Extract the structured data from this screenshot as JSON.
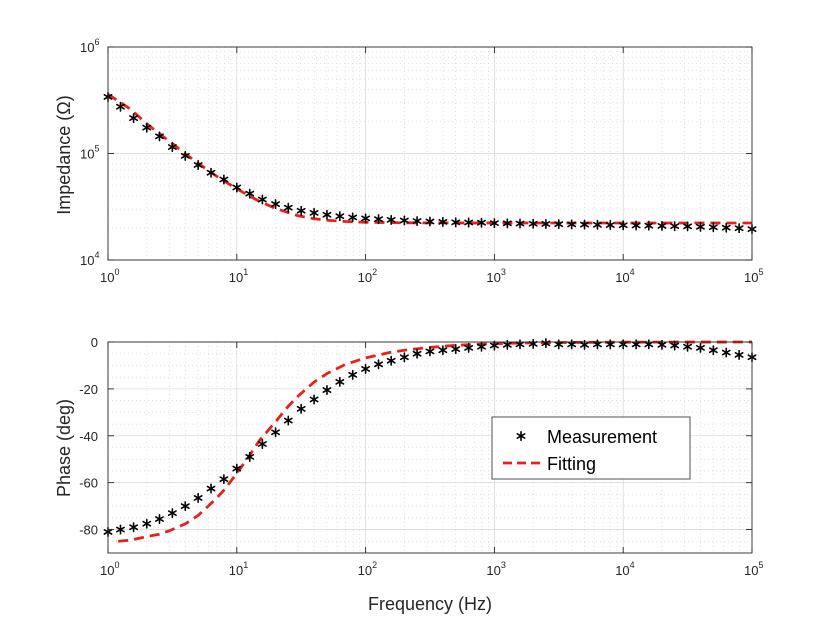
{
  "chart_data": [
    {
      "type": "scatter",
      "panel": "impedance",
      "x_scale": "log",
      "y_scale": "log",
      "xlim": [
        1,
        100000
      ],
      "ylim": [
        10000,
        1000000
      ],
      "grid": true,
      "minor_grid": true,
      "xlabel": "",
      "ylabel": "Impedance (Ω)",
      "x_ticks": [
        {
          "base": "10",
          "exp": "0",
          "value": 1
        },
        {
          "base": "10",
          "exp": "1",
          "value": 10
        },
        {
          "base": "10",
          "exp": "2",
          "value": 100
        },
        {
          "base": "10",
          "exp": "3",
          "value": 1000
        },
        {
          "base": "10",
          "exp": "4",
          "value": 10000
        },
        {
          "base": "10",
          "exp": "5",
          "value": 100000
        }
      ],
      "y_ticks": [
        {
          "base": "10",
          "exp": "4",
          "value": 10000
        },
        {
          "base": "10",
          "exp": "5",
          "value": 100000
        },
        {
          "base": "10",
          "exp": "6",
          "value": 1000000
        }
      ],
      "series": [
        {
          "key": "measurement",
          "style": "markers",
          "marker": "asterisk",
          "color": "#000000",
          "x": [
            1,
            1.25,
            1.58,
            2,
            2.51,
            3.16,
            3.98,
            5.01,
            6.31,
            7.94,
            10,
            12.6,
            15.8,
            20,
            25.1,
            31.6,
            39.8,
            50.1,
            63.1,
            79.4,
            100,
            126,
            158,
            200,
            251,
            316,
            398,
            501,
            631,
            794,
            1000,
            1260,
            1580,
            2000,
            2510,
            3160,
            3980,
            5010,
            6310,
            7940,
            10000,
            12600,
            15800,
            20000,
            25100,
            31600,
            39800,
            50100,
            63100,
            79400,
            100000
          ],
          "y": [
            340000,
            275000,
            215000,
            175000,
            145000,
            115000,
            95000,
            78000,
            66000,
            57000,
            48000,
            42000,
            37000,
            33500,
            31000,
            29000,
            27700,
            26600,
            25800,
            25100,
            24600,
            24200,
            23800,
            23500,
            23200,
            23000,
            22800,
            22600,
            22500,
            22400,
            22200,
            22100,
            22000,
            21900,
            21800,
            21700,
            21600,
            21500,
            21400,
            21300,
            21200,
            21100,
            21000,
            20900,
            20800,
            20700,
            20500,
            20300,
            20100,
            19900,
            19500
          ]
        },
        {
          "key": "fitting",
          "style": "dashed-line",
          "color": "#e8201c",
          "x": [
            1,
            1.5,
            2,
            3,
            4,
            5,
            7,
            10,
            15,
            20,
            30,
            40,
            50,
            70,
            100,
            200,
            500,
            1000,
            10000,
            100000
          ],
          "y": [
            360000,
            260000,
            190000,
            130000,
            99000,
            81000,
            61000,
            46500,
            35500,
            30500,
            26000,
            24400,
            23600,
            23000,
            22600,
            22350,
            22300,
            22280,
            22250,
            22250
          ]
        }
      ]
    },
    {
      "type": "scatter",
      "panel": "phase",
      "x_scale": "log",
      "y_scale": "linear",
      "xlim": [
        1,
        100000
      ],
      "ylim": [
        -90,
        0
      ],
      "grid": true,
      "minor_grid": true,
      "xlabel": "Frequency (Hz)",
      "ylabel": "Phase (deg)",
      "x_ticks": [
        {
          "base": "10",
          "exp": "0",
          "value": 1
        },
        {
          "base": "10",
          "exp": "1",
          "value": 10
        },
        {
          "base": "10",
          "exp": "2",
          "value": 100
        },
        {
          "base": "10",
          "exp": "3",
          "value": 1000
        },
        {
          "base": "10",
          "exp": "4",
          "value": 10000
        },
        {
          "base": "10",
          "exp": "5",
          "value": 100000
        }
      ],
      "y_ticks": [
        {
          "label": "0",
          "value": 0
        },
        {
          "label": "-20",
          "value": -20
        },
        {
          "label": "-40",
          "value": -40
        },
        {
          "label": "-60",
          "value": -60
        },
        {
          "label": "-80",
          "value": -80
        }
      ],
      "legend": {
        "placement": "center-right",
        "entries": [
          {
            "key": "measurement",
            "label": "Measurement"
          },
          {
            "key": "fitting",
            "label": "Fitting"
          }
        ]
      },
      "series": [
        {
          "key": "measurement",
          "style": "markers",
          "marker": "asterisk",
          "color": "#000000",
          "x": [
            1,
            1.25,
            1.58,
            2,
            2.51,
            3.16,
            3.98,
            5.01,
            6.31,
            7.94,
            10,
            12.6,
            15.8,
            20,
            25.1,
            31.6,
            39.8,
            50.1,
            63.1,
            79.4,
            100,
            126,
            158,
            200,
            251,
            316,
            398,
            501,
            631,
            794,
            1000,
            1260,
            1580,
            2000,
            2510,
            3160,
            3980,
            5010,
            6310,
            7940,
            10000,
            12600,
            15800,
            20000,
            25100,
            31600,
            39800,
            50100,
            63100,
            79400,
            100000
          ],
          "y": [
            -81,
            -80,
            -79,
            -77.5,
            -75.5,
            -73,
            -70,
            -66.5,
            -62.5,
            -58.5,
            -54,
            -49,
            -43.5,
            -38.5,
            -33.5,
            -28.5,
            -24.5,
            -20.5,
            -17,
            -14,
            -11.5,
            -9.5,
            -8,
            -6.5,
            -5,
            -4,
            -3.5,
            -3,
            -2.5,
            -2,
            -1.5,
            -1.2,
            -1,
            -0.8,
            -0.5,
            -1,
            -1,
            -1.2,
            -1,
            -1,
            -1,
            -1,
            -1,
            -1.2,
            -1.5,
            -2,
            -2.5,
            -3.5,
            -4.5,
            -5.5,
            -6.5
          ]
        },
        {
          "key": "fitting",
          "style": "dashed-line",
          "color": "#e8201c",
          "x": [
            1.2,
            1.5,
            2,
            2.5,
            3,
            4,
            5,
            6,
            7,
            8,
            10,
            12,
            15,
            20,
            25,
            30,
            40,
            50,
            70,
            100,
            150,
            200,
            300,
            500,
            1000,
            2000,
            5000,
            10000,
            30000,
            100000
          ],
          "y": [
            -85,
            -84.5,
            -83,
            -82,
            -80.5,
            -77.5,
            -74,
            -70,
            -66.5,
            -63,
            -56,
            -50,
            -42,
            -34,
            -27.5,
            -23,
            -17,
            -13.5,
            -9.5,
            -6.8,
            -4.6,
            -3.5,
            -2.4,
            -1.4,
            -0.7,
            -0.35,
            -0.15,
            -0.08,
            -0.03,
            -0.01
          ]
        }
      ]
    }
  ]
}
